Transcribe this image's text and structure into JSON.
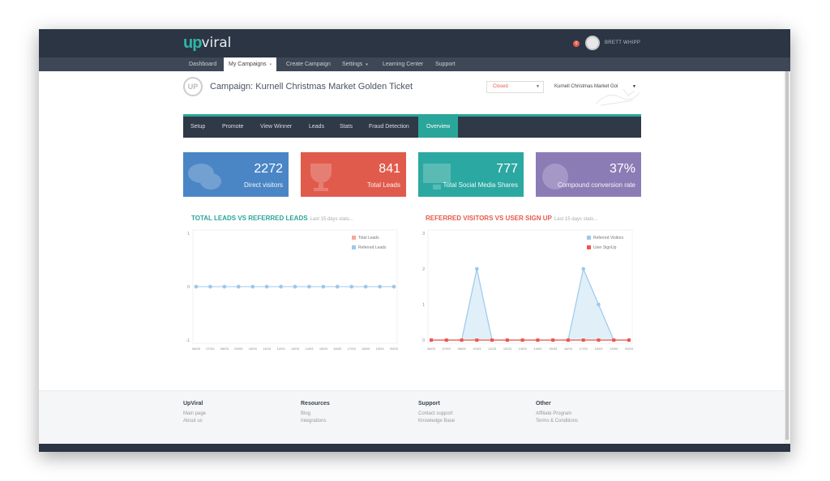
{
  "header": {
    "logo_up": "up",
    "logo_viral": "viral",
    "notification_count": "0",
    "username": "BRETT WHIPP"
  },
  "nav": [
    "Dashboard",
    "My Campaigns",
    "Create Campaign",
    "Settings",
    "Learning Center",
    "Support"
  ],
  "campaign": {
    "icon_text": "UP",
    "title": "Campaign: Kurnell Christmas Market Golden Ticket",
    "status_value": "Closed",
    "campaign_select_value": "Kurnell Christmas Market Gol"
  },
  "tabs": [
    "Setup",
    "Promote",
    "View Winner",
    "Leads",
    "Stats",
    "Fraud Detection",
    "Overview"
  ],
  "cards": [
    {
      "value": "2272",
      "label": "Direct visitors",
      "color": "#4a86c5"
    },
    {
      "value": "841",
      "label": "Total Leads",
      "color": "#e05b4c"
    },
    {
      "value": "777",
      "label": "Total Social Media Shares",
      "color": "#2ba8a1"
    },
    {
      "value": "37%",
      "label": "Compound conversion rate",
      "color": "#8b7cb6"
    }
  ],
  "chart_titles": {
    "left": "TOTAL LEADS VS REFERRED LEADS",
    "left_sub": "Last 15 days stats...",
    "right": "REFERRED VISITORS VS USER SIGN UP",
    "right_sub": "Last 15 days stats..."
  },
  "chart_data": [
    {
      "type": "line",
      "title": "TOTAL LEADS VS REFERRED LEADS",
      "x": [
        "06/03",
        "07/03",
        "08/03",
        "09/03",
        "10/03",
        "11/03",
        "12/03",
        "13/03",
        "14/03",
        "15/03",
        "16/03",
        "17/03",
        "18/03",
        "19/03",
        "20/03"
      ],
      "ylim": [
        -1,
        1
      ],
      "yticks": [
        "1",
        "0",
        "-1"
      ],
      "series": [
        {
          "name": "Total Leads",
          "color": "#f4a8a0",
          "values": [
            0,
            0,
            0,
            0,
            0,
            0,
            0,
            0,
            0,
            0,
            0,
            0,
            0,
            0,
            0
          ]
        },
        {
          "name": "Referred Leads",
          "color": "#9cc9ec",
          "values": [
            0,
            0,
            0,
            0,
            0,
            0,
            0,
            0,
            0,
            0,
            0,
            0,
            0,
            0,
            0
          ]
        }
      ],
      "legend": "top-right",
      "grid": false
    },
    {
      "type": "area",
      "title": "REFERRED VISITORS VS USER SIGN UP",
      "x": [
        "06/03",
        "07/03",
        "08/03",
        "10/03",
        "11/03",
        "12/03",
        "13/03",
        "14/03",
        "15/03",
        "16/03",
        "17/03",
        "18/03",
        "19/03",
        "20/03"
      ],
      "ylim": [
        0,
        3
      ],
      "yticks": [
        "0",
        "1",
        "2",
        "3"
      ],
      "series": [
        {
          "name": "Referred Visitors",
          "color": "#9cc9ec",
          "values": [
            0,
            0,
            0,
            2,
            0,
            0,
            0,
            0,
            0,
            0,
            2,
            1,
            0,
            0
          ]
        },
        {
          "name": "User SignUp",
          "color": "#f0574a",
          "values": [
            0,
            0,
            0,
            0,
            0,
            0,
            0,
            0,
            0,
            0,
            0,
            0,
            0,
            0
          ]
        }
      ],
      "legend": "top-right",
      "grid": false
    }
  ],
  "footer": [
    {
      "heading": "UpViral",
      "links": [
        "Main page",
        "About us"
      ]
    },
    {
      "heading": "Resources",
      "links": [
        "Blog",
        "Integrations"
      ]
    },
    {
      "heading": "Support",
      "links": [
        "Contact support",
        "Knowledge Base"
      ]
    },
    {
      "heading": "Other",
      "links": [
        "Affiliate Program",
        "Terms & Conditions"
      ]
    }
  ]
}
